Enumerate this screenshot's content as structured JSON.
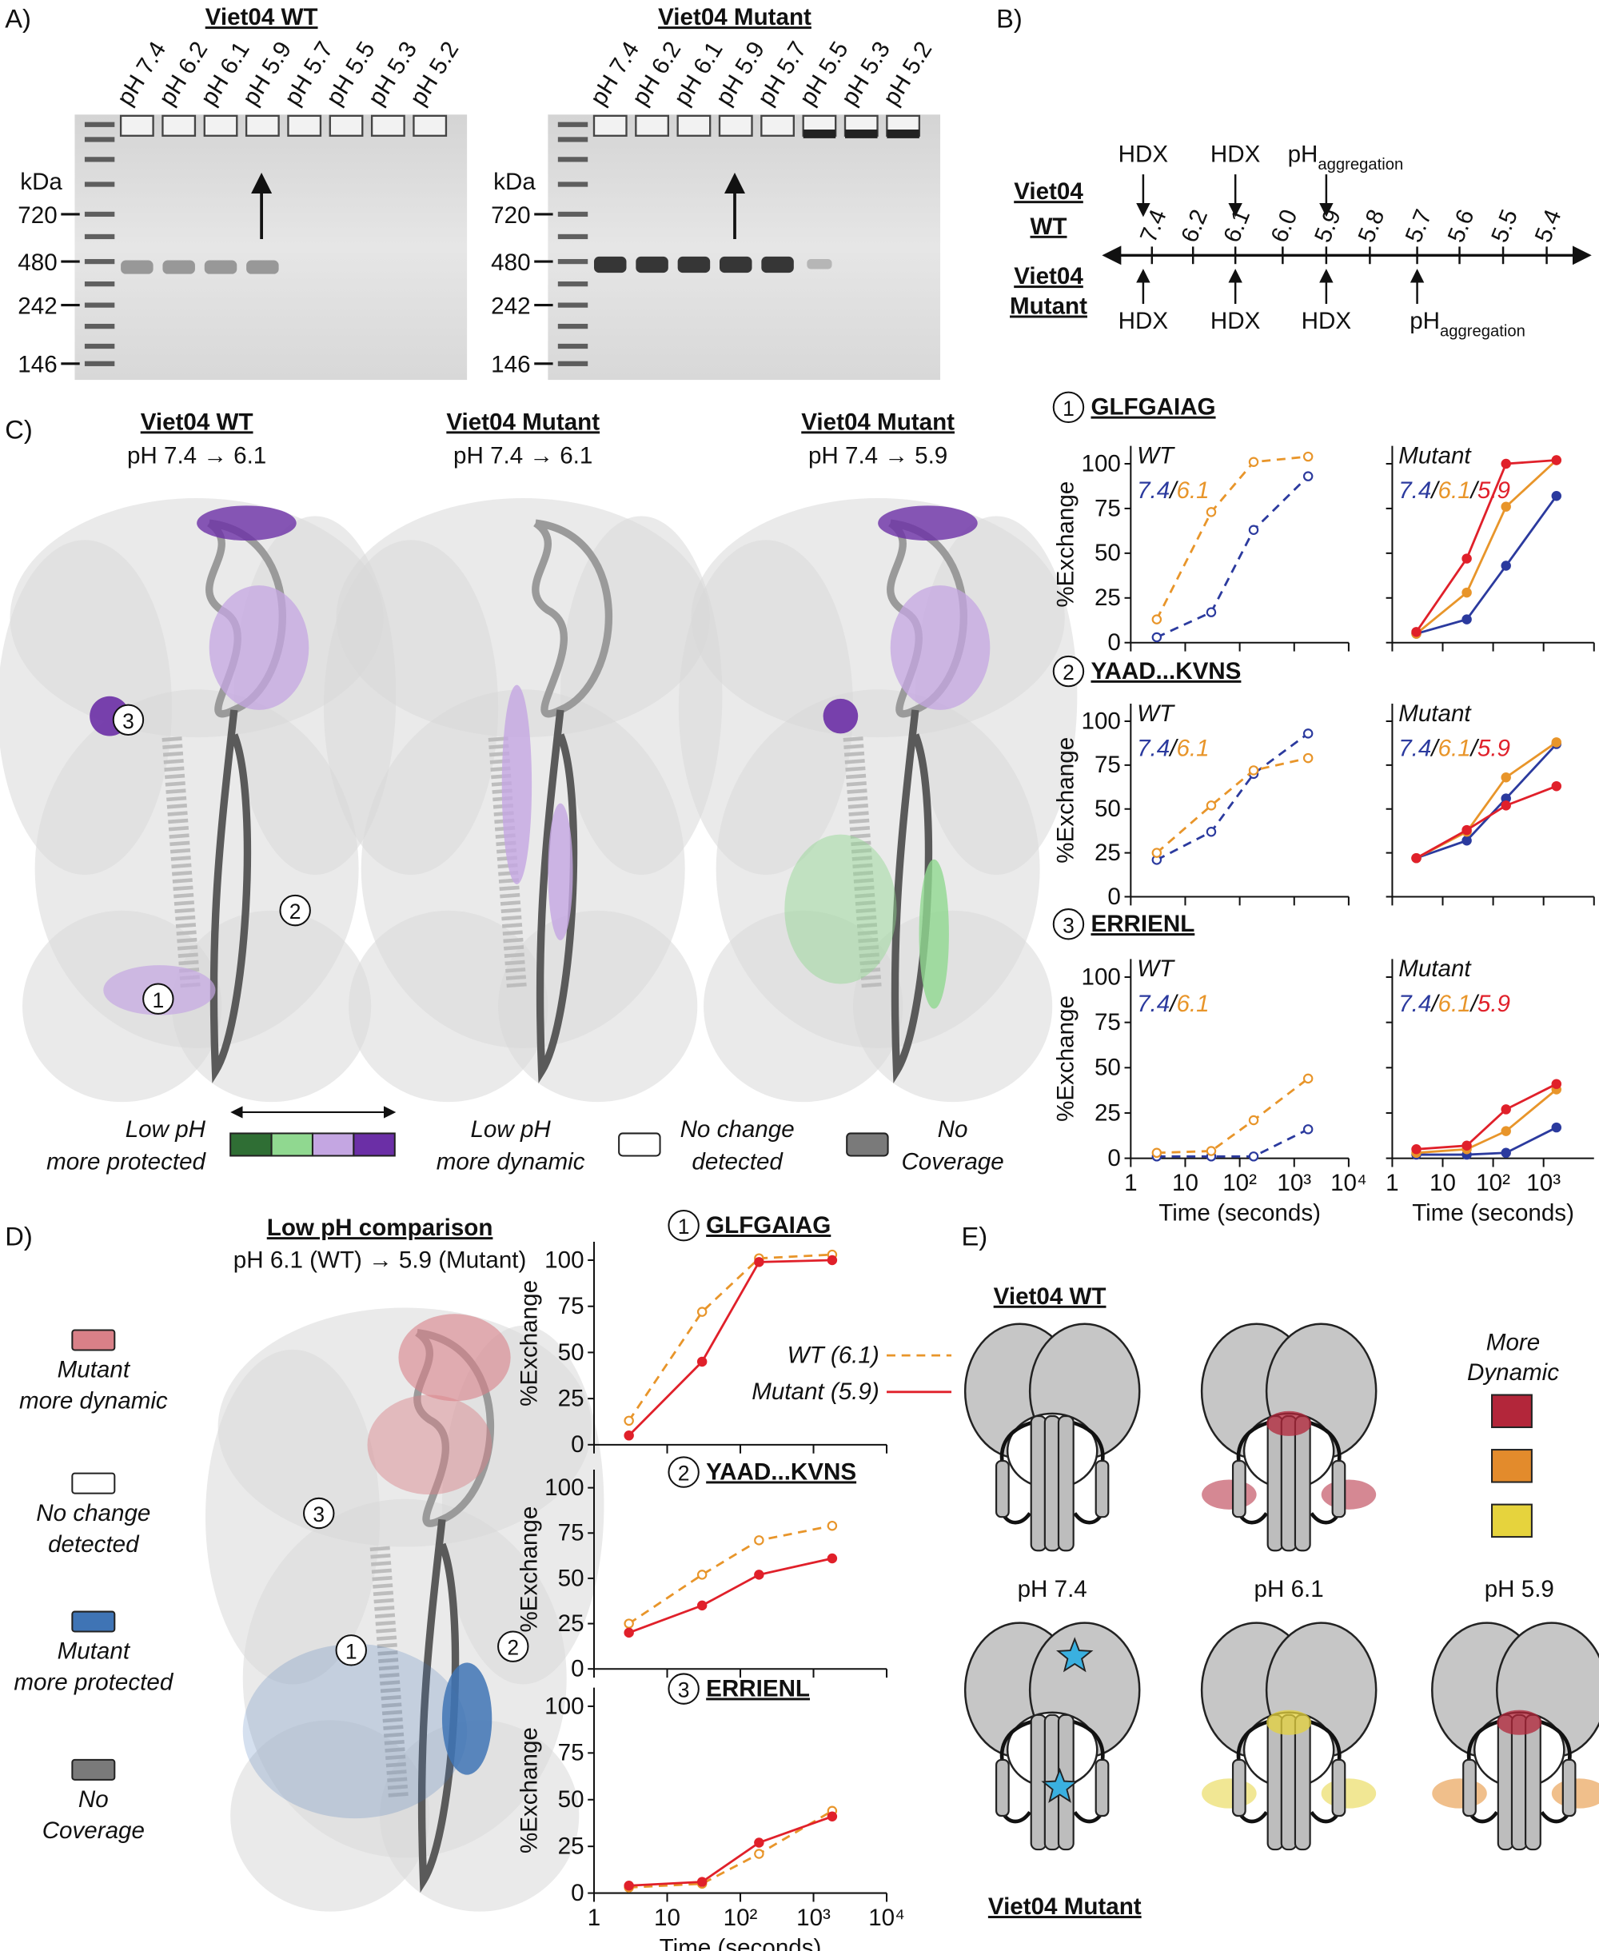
{
  "figure": {
    "panel_a": {
      "label": "A)",
      "gels": [
        {
          "title": "Viet04 WT",
          "lanes": [
            "pH 7.4",
            "pH 6.2",
            "pH 6.1",
            "pH 5.9",
            "pH 5.7",
            "pH 5.5",
            "pH 5.3",
            "pH 5.2"
          ],
          "unit": "kDa",
          "markers": [
            "720",
            "480",
            "242",
            "146"
          ]
        },
        {
          "title": "Viet04 Mutant",
          "lanes": [
            "pH 7.4",
            "pH 6.2",
            "pH 6.1",
            "pH 5.9",
            "pH 5.7",
            "pH 5.5",
            "pH 5.3",
            "pH 5.2"
          ],
          "unit": "kDa",
          "markers": [
            "720",
            "480",
            "242",
            "146"
          ]
        }
      ]
    },
    "panel_b": {
      "label": "B)",
      "rows": [
        [
          "Viet04",
          "WT"
        ],
        [
          "Viet04",
          "Mutant"
        ]
      ],
      "scale": [
        "7.4",
        "6.2",
        "6.1",
        "6.0",
        "5.9",
        "5.8",
        "5.7",
        "5.6",
        "5.5",
        "5.4"
      ],
      "top_annotations": [
        {
          "text": "HDX"
        },
        {
          "text": "HDX"
        },
        {
          "text": "pH",
          "sub": "aggregation"
        }
      ],
      "bottom_annotations": [
        {
          "text": "HDX"
        },
        {
          "text": "HDX"
        },
        {
          "text": "HDX"
        },
        {
          "text": "pH",
          "sub": "aggregation"
        }
      ]
    },
    "panel_c": {
      "label": "C)",
      "structures": [
        {
          "title": "Viet04 WT",
          "subtitle": "pH 7.4 → 6.1",
          "markers": [
            "3",
            "2",
            "1"
          ]
        },
        {
          "title": "Viet04 Mutant",
          "subtitle": "pH 7.4 → 6.1"
        },
        {
          "title": "Viet04 Mutant",
          "subtitle": "pH 7.4 → 5.9"
        }
      ],
      "legend": [
        {
          "lines": [
            "Low pH",
            "more protected"
          ],
          "colors": [
            "#2f6e34",
            "#90d890"
          ]
        },
        {
          "lines": [
            "Low pH",
            "more dynamic"
          ],
          "colors": [
            "#c4a6e2",
            "#6b2fa6"
          ]
        },
        {
          "lines": [
            "No change",
            "detected"
          ],
          "colors": [
            "#ffffff"
          ]
        },
        {
          "lines": [
            "No",
            "Coverage"
          ],
          "colors": [
            "#7a7a7a"
          ]
        }
      ]
    },
    "panel_d": {
      "label": "D)",
      "title": "Low pH comparison",
      "subtitle": "pH 6.1 (WT) → 5.9 (Mutant)",
      "markers": [
        "3",
        "1",
        "2"
      ],
      "legend": [
        {
          "lines": [
            "Mutant",
            "more dynamic"
          ],
          "color": "#d98088"
        },
        {
          "lines": [
            "No change",
            "detected"
          ],
          "color": "#ffffff"
        },
        {
          "lines": [
            "Mutant",
            "more protected"
          ],
          "color": "#3f74b5"
        },
        {
          "lines": [
            "No",
            "Coverage"
          ],
          "color": "#7a7a7a"
        }
      ]
    },
    "panel_e": {
      "label": "E)",
      "top_label": "Viet04 WT",
      "bottom_label": "Viet04 Mutant",
      "key_title": [
        "More",
        "Dynamic"
      ],
      "key_colors": [
        "#b3263a",
        "#e38b2c",
        "#e6d33d"
      ],
      "conditions": [
        "pH 7.4",
        "pH 6.1",
        "pH 5.9"
      ]
    }
  },
  "chart_data": [
    {
      "type": "line",
      "number": "1",
      "title": "GLFGAIAG",
      "header": "WT",
      "ylabel": "%Exchange",
      "legend": "top-left",
      "separator": "/",
      "x": [
        3,
        30,
        180,
        1800
      ],
      "xlim": [
        1,
        10000
      ],
      "ylim": [
        0,
        110
      ],
      "yticks": [
        0,
        25,
        50,
        75,
        100
      ],
      "ytick_labels": true,
      "xticks": [
        1,
        10,
        {
          "value": 100,
          "label": "10²"
        },
        {
          "value": 1000,
          "label": "10³"
        },
        {
          "value": 10000,
          "label": "10⁴"
        }
      ],
      "xtick_labels": false,
      "series": [
        {
          "name": "7.4",
          "color": "#2b3a9e",
          "dashed": true,
          "marker": "open",
          "values": [
            3,
            17,
            63,
            93
          ]
        },
        {
          "name": "6.1",
          "color": "#e8952a",
          "dashed": true,
          "marker": "open",
          "values": [
            13,
            73,
            101,
            104
          ]
        }
      ]
    },
    {
      "type": "line",
      "header": "Mutant",
      "legend": "top-left",
      "separator": "/",
      "x": [
        3,
        30,
        180,
        1800
      ],
      "xlim": [
        1,
        10000
      ],
      "ylim": [
        0,
        110
      ],
      "yticks": [
        0,
        25,
        50,
        75,
        100
      ],
      "ytick_labels": false,
      "xticks": [
        1,
        10,
        {
          "value": 100,
          "label": "10²"
        },
        {
          "value": 1000,
          "label": "10³"
        },
        {
          "value": 10000,
          "label": "10⁴"
        }
      ],
      "xtick_labels": false,
      "series": [
        {
          "name": "7.4",
          "color": "#2b3a9e",
          "dashed": false,
          "marker": "filled",
          "values": [
            5,
            13,
            43,
            82
          ]
        },
        {
          "name": "6.1",
          "color": "#e8952a",
          "dashed": false,
          "marker": "filled",
          "values": [
            5,
            28,
            76,
            102
          ]
        },
        {
          "name": "5.9",
          "color": "#e0202a",
          "dashed": false,
          "marker": "filled",
          "values": [
            6,
            47,
            100,
            102
          ]
        }
      ]
    },
    {
      "type": "line",
      "number": "2",
      "title": "YAAD...KVNS",
      "header": "WT",
      "ylabel": "%Exchange",
      "legend": "top-left",
      "separator": "/",
      "x": [
        3,
        30,
        180,
        1800
      ],
      "xlim": [
        1,
        10000
      ],
      "ylim": [
        0,
        110
      ],
      "yticks": [
        0,
        25,
        50,
        75,
        100
      ],
      "ytick_labels": true,
      "xticks": [
        1,
        10,
        {
          "value": 100,
          "label": "10²"
        },
        {
          "value": 1000,
          "label": "10³"
        },
        {
          "value": 10000,
          "label": "10⁴"
        }
      ],
      "xtick_labels": false,
      "series": [
        {
          "name": "7.4",
          "color": "#2b3a9e",
          "dashed": true,
          "marker": "open",
          "values": [
            21,
            37,
            70,
            93
          ]
        },
        {
          "name": "6.1",
          "color": "#e8952a",
          "dashed": true,
          "marker": "open",
          "values": [
            25,
            52,
            72,
            79
          ]
        }
      ]
    },
    {
      "type": "line",
      "header": "Mutant",
      "legend": "top-left",
      "separator": "/",
      "x": [
        3,
        30,
        180,
        1800
      ],
      "xlim": [
        1,
        10000
      ],
      "ylim": [
        0,
        110
      ],
      "yticks": [
        0,
        25,
        50,
        75,
        100
      ],
      "ytick_labels": false,
      "xticks": [
        1,
        10,
        {
          "value": 100,
          "label": "10²"
        },
        {
          "value": 1000,
          "label": "10³"
        },
        {
          "value": 10000,
          "label": "10⁴"
        }
      ],
      "xtick_labels": false,
      "series": [
        {
          "name": "7.4",
          "color": "#2b3a9e",
          "dashed": false,
          "marker": "filled",
          "values": [
            22,
            32,
            56,
            87
          ]
        },
        {
          "name": "6.1",
          "color": "#e8952a",
          "dashed": false,
          "marker": "filled",
          "values": [
            22,
            37,
            68,
            88
          ]
        },
        {
          "name": "5.9",
          "color": "#e0202a",
          "dashed": false,
          "marker": "filled",
          "values": [
            22,
            38,
            52,
            63
          ]
        }
      ]
    },
    {
      "type": "line",
      "number": "3",
      "title": "ERRIENL",
      "header": "WT",
      "ylabel": "%Exchange",
      "xlabel": "Time (seconds)",
      "legend": "top-left",
      "separator": "/",
      "x": [
        3,
        30,
        180,
        1800
      ],
      "xlim": [
        1,
        10000
      ],
      "ylim": [
        0,
        110
      ],
      "yticks": [
        0,
        25,
        50,
        75,
        100
      ],
      "ytick_labels": true,
      "xticks": [
        1,
        10,
        {
          "value": 100,
          "label": "10²"
        },
        {
          "value": 1000,
          "label": "10³"
        },
        {
          "value": 10000,
          "label": "10⁴"
        }
      ],
      "xtick_labels": true,
      "series": [
        {
          "name": "7.4",
          "color": "#2b3a9e",
          "dashed": true,
          "marker": "open",
          "values": [
            1,
            1,
            1,
            16
          ]
        },
        {
          "name": "6.1",
          "color": "#e8952a",
          "dashed": true,
          "marker": "open",
          "values": [
            3,
            4,
            21,
            44
          ]
        }
      ]
    },
    {
      "type": "line",
      "header": "Mutant",
      "xlabel": "Time (seconds)",
      "legend": "top-left",
      "separator": "/",
      "x": [
        3,
        30,
        180,
        1800
      ],
      "xlim": [
        1,
        10000
      ],
      "ylim": [
        0,
        110
      ],
      "yticks": [
        0,
        25,
        50,
        75,
        100
      ],
      "ytick_labels": false,
      "xticks": [
        1,
        10,
        {
          "value": 100,
          "label": "10²"
        },
        {
          "value": 1000,
          "label": "10³"
        }
      ],
      "xtick_labels": true,
      "series": [
        {
          "name": "7.4",
          "color": "#2b3a9e",
          "dashed": false,
          "marker": "filled",
          "values": [
            2,
            2,
            3,
            17
          ]
        },
        {
          "name": "6.1",
          "color": "#e8952a",
          "dashed": false,
          "marker": "filled",
          "values": [
            3,
            5,
            15,
            38
          ]
        },
        {
          "name": "5.9",
          "color": "#e0202a",
          "dashed": false,
          "marker": "filled",
          "values": [
            5,
            7,
            27,
            41
          ]
        }
      ]
    },
    {
      "type": "line",
      "number": "1",
      "title": "GLFGAIAG",
      "ylabel": "%Exchange",
      "legend": "center-right",
      "x": [
        3,
        30,
        180,
        1800
      ],
      "xlim": [
        1,
        10000
      ],
      "ylim": [
        0,
        110
      ],
      "yticks": [
        0,
        25,
        50,
        75,
        100
      ],
      "ytick_labels": true,
      "xticks": [
        1,
        10,
        {
          "value": 100,
          "label": "10²"
        },
        {
          "value": 1000,
          "label": "10³"
        },
        {
          "value": 10000,
          "label": "10⁴"
        }
      ],
      "xtick_labels": false,
      "series": [
        {
          "name": "WT (6.1)",
          "color": "#e8952a",
          "dashed": true,
          "marker": "open",
          "values": [
            13,
            72,
            101,
            103
          ]
        },
        {
          "name": "Mutant (5.9)",
          "color": "#e0202a",
          "dashed": false,
          "marker": "filled",
          "values": [
            5,
            45,
            99,
            100
          ]
        }
      ]
    },
    {
      "type": "line",
      "number": "2",
      "title": "YAAD...KVNS",
      "ylabel": "%Exchange",
      "legend": "center-right",
      "x": [
        3,
        30,
        180,
        1800
      ],
      "xlim": [
        1,
        10000
      ],
      "ylim": [
        0,
        110
      ],
      "yticks": [
        0,
        25,
        50,
        75,
        100
      ],
      "ytick_labels": true,
      "xticks": [
        1,
        10,
        {
          "value": 100,
          "label": "10²"
        },
        {
          "value": 1000,
          "label": "10³"
        },
        {
          "value": 10000,
          "label": "10⁴"
        }
      ],
      "xtick_labels": false,
      "series": [
        {
          "color": "#e8952a",
          "dashed": true,
          "marker": "open",
          "values": [
            25,
            52,
            71,
            79
          ]
        },
        {
          "color": "#e0202a",
          "dashed": false,
          "marker": "filled",
          "values": [
            20,
            35,
            52,
            61
          ]
        }
      ]
    },
    {
      "type": "line",
      "number": "3",
      "title": "ERRIENL",
      "ylabel": "%Exchange",
      "xlabel": "Time (seconds)",
      "legend": "center-right",
      "x": [
        3,
        30,
        180,
        1800
      ],
      "xlim": [
        1,
        10000
      ],
      "ylim": [
        0,
        110
      ],
      "yticks": [
        0,
        25,
        50,
        75,
        100
      ],
      "ytick_labels": true,
      "xticks": [
        1,
        10,
        {
          "value": 100,
          "label": "10²"
        },
        {
          "value": 1000,
          "label": "10³"
        },
        {
          "value": 10000,
          "label": "10⁴"
        }
      ],
      "xtick_labels": true,
      "series": [
        {
          "color": "#e8952a",
          "dashed": true,
          "marker": "open",
          "values": [
            3,
            5,
            21,
            44
          ]
        },
        {
          "color": "#e0202a",
          "dashed": false,
          "marker": "filled",
          "values": [
            4,
            6,
            27,
            41
          ]
        }
      ]
    }
  ]
}
